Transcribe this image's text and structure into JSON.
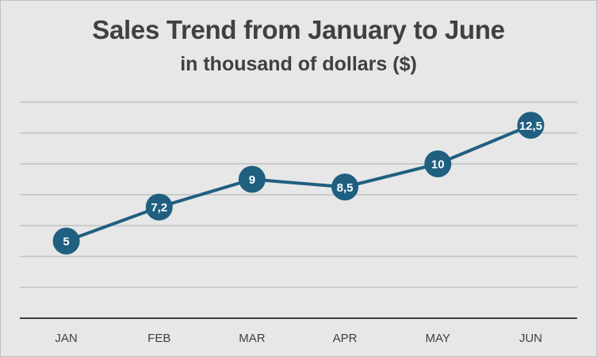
{
  "chart_data": {
    "type": "line",
    "title": "Sales Trend from January to June",
    "subtitle": "in thousand of dollars ($)",
    "categories": [
      "JAN",
      "FEB",
      "MAR",
      "APR",
      "MAY",
      "JUN"
    ],
    "values": [
      5,
      7.2,
      9,
      8.5,
      10,
      12.5
    ],
    "data_labels": [
      "5",
      "7,2",
      "9",
      "8,5",
      "10",
      "12,5"
    ],
    "ylim": [
      0,
      14
    ],
    "y_gridlines": [
      0,
      2,
      4,
      6,
      8,
      10,
      12,
      14
    ],
    "grid": true,
    "legend": "none",
    "colors": {
      "line": "#1f5f80",
      "marker": "#1f5f80",
      "background": "#e7e7e7",
      "text": "#404040"
    }
  }
}
